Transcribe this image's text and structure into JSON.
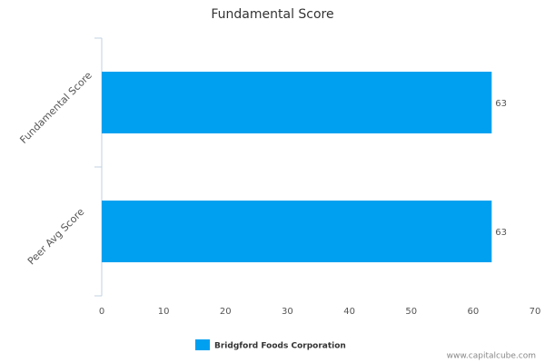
{
  "chart_data": {
    "type": "bar",
    "orientation": "horizontal",
    "title": "Fundamental Score",
    "categories": [
      "Fundamental Score",
      "Peer Avg Score"
    ],
    "series": [
      {
        "name": "Bridgford Foods Corporation",
        "color": "#00a0f0",
        "values": [
          63,
          63
        ]
      }
    ],
    "xlim": [
      0,
      70
    ],
    "xticks": [
      0,
      10,
      20,
      30,
      40,
      50,
      60,
      70
    ],
    "data_labels": true,
    "legend": "bottom",
    "watermark": "www.capitalcube.com"
  }
}
